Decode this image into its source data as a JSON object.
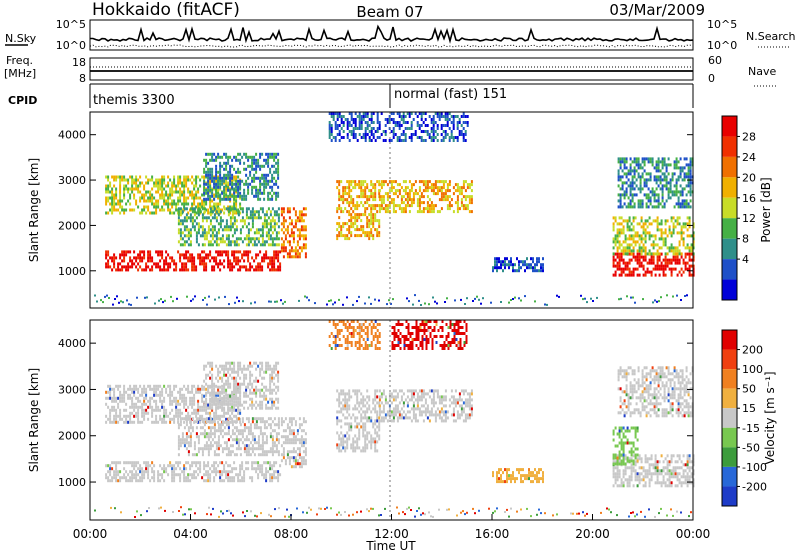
{
  "header": {
    "station": "Hokkaido (fitACF)",
    "beam": "Beam 07",
    "date": "03/Mar/2009"
  },
  "status_panels": {
    "noise": {
      "left_label": "N.Sky",
      "left_ticks": [
        "10^5",
        "10^0"
      ],
      "right_ticks": [
        "10^5",
        "10^0"
      ],
      "right_label": "N.Search"
    },
    "freq": {
      "left_label_line1": "Freq.",
      "left_label_line2": "[MHz]",
      "left_ticks": [
        "18",
        "8"
      ],
      "right_ticks": [
        "60",
        "0"
      ],
      "right_label": "Nave"
    },
    "cpid": {
      "label": "CPID",
      "segments": [
        {
          "start_hour": 0,
          "text": "themis 3300"
        },
        {
          "start_hour": 12,
          "text": "normal (fast) 151"
        }
      ]
    }
  },
  "chart_data": [
    {
      "type": "heatmap",
      "panel": "power",
      "ylabel": "Slant Range [km]",
      "yticks": [
        1000,
        2000,
        3000,
        4000
      ],
      "ylim": [
        180,
        4500
      ],
      "xlim": [
        0,
        24
      ],
      "colorbar": {
        "label": "Power [dB]",
        "ticks": [
          "4",
          "8",
          "12",
          "16",
          "20",
          "24",
          "28"
        ],
        "colors": [
          "#0000d8",
          "#1e50c8",
          "#2f8f8a",
          "#45b045",
          "#c8dc28",
          "#f0b000",
          "#f07000",
          "#f03000",
          "#e80000"
        ]
      },
      "echo_regions": [
        {
          "t0": 0.6,
          "t1": 7.6,
          "r0": 1050,
          "r1": 1450,
          "level": 8
        },
        {
          "t0": 7.6,
          "t1": 8.6,
          "r0": 1300,
          "r1": 2400,
          "level": 6
        },
        {
          "t0": 0.6,
          "t1": 6.0,
          "r0": 2300,
          "r1": 3100,
          "level": 4
        },
        {
          "t0": 4.5,
          "t1": 7.5,
          "r0": 2600,
          "r1": 3600,
          "level": 2
        },
        {
          "t0": 3.5,
          "t1": 7.5,
          "r0": 1600,
          "r1": 2400,
          "level": 3
        },
        {
          "t0": 9.8,
          "t1": 11.5,
          "r0": 1700,
          "r1": 3000,
          "level": 5
        },
        {
          "t0": 11.5,
          "t1": 15.2,
          "r0": 2300,
          "r1": 3000,
          "level": 5
        },
        {
          "t0": 9.5,
          "t1": 15.0,
          "r0": 3900,
          "r1": 4500,
          "level": 1
        },
        {
          "t0": 16.0,
          "t1": 18.0,
          "r0": 1000,
          "r1": 1300,
          "level": 1
        },
        {
          "t0": 20.8,
          "t1": 24.0,
          "r0": 900,
          "r1": 1400,
          "level": 8
        },
        {
          "t0": 20.8,
          "t1": 24.0,
          "r0": 1400,
          "r1": 2200,
          "level": 4
        },
        {
          "t0": 21.0,
          "t1": 24.0,
          "r0": 2400,
          "r1": 3500,
          "level": 2
        }
      ]
    },
    {
      "type": "heatmap",
      "panel": "velocity",
      "ylabel": "Slant Range [km]",
      "yticks": [
        1000,
        2000,
        3000,
        4000
      ],
      "ylim": [
        180,
        4500
      ],
      "xlim": [
        0,
        24
      ],
      "xlabel": "Time UT",
      "xticks": [
        "00:00",
        "04:00",
        "08:00",
        "12:00",
        "16:00",
        "20:00",
        "00:00"
      ],
      "colorbar": {
        "label": "Velocity [m s⁻¹]",
        "ticks": [
          "200",
          "100",
          "50",
          "15",
          "-15",
          "-50",
          "-100",
          "-200"
        ],
        "colors": [
          "#1e3cc8",
          "#2868d8",
          "#3c9c3c",
          "#78c850",
          "#c8c8c8",
          "#f0b040",
          "#f08020",
          "#f04010",
          "#e00000"
        ]
      },
      "echo_regions": [
        {
          "t0": 0.6,
          "t1": 7.6,
          "r0": 1050,
          "r1": 1450,
          "level": 4
        },
        {
          "t0": 7.6,
          "t1": 8.6,
          "r0": 1300,
          "r1": 2400,
          "level": 4
        },
        {
          "t0": 0.6,
          "t1": 6.0,
          "r0": 2300,
          "r1": 3100,
          "level": 4
        },
        {
          "t0": 4.5,
          "t1": 7.5,
          "r0": 2600,
          "r1": 3600,
          "level": 4
        },
        {
          "t0": 3.5,
          "t1": 7.5,
          "r0": 1600,
          "r1": 2400,
          "level": 4
        },
        {
          "t0": 9.8,
          "t1": 11.5,
          "r0": 1700,
          "r1": 3000,
          "level": 4
        },
        {
          "t0": 11.5,
          "t1": 15.2,
          "r0": 2300,
          "r1": 3000,
          "level": 4
        },
        {
          "t0": 12.0,
          "t1": 15.0,
          "r0": 3900,
          "r1": 4500,
          "level": 8
        },
        {
          "t0": 9.5,
          "t1": 11.5,
          "r0": 3900,
          "r1": 4500,
          "level": 6
        },
        {
          "t0": 16.0,
          "t1": 18.0,
          "r0": 1000,
          "r1": 1300,
          "level": 5
        },
        {
          "t0": 20.8,
          "t1": 24.0,
          "r0": 900,
          "r1": 1600,
          "level": 4
        },
        {
          "t0": 20.8,
          "t1": 21.8,
          "r0": 1400,
          "r1": 2200,
          "level": 3
        },
        {
          "t0": 21.0,
          "t1": 24.0,
          "r0": 2400,
          "r1": 3500,
          "level": 4
        }
      ]
    }
  ]
}
